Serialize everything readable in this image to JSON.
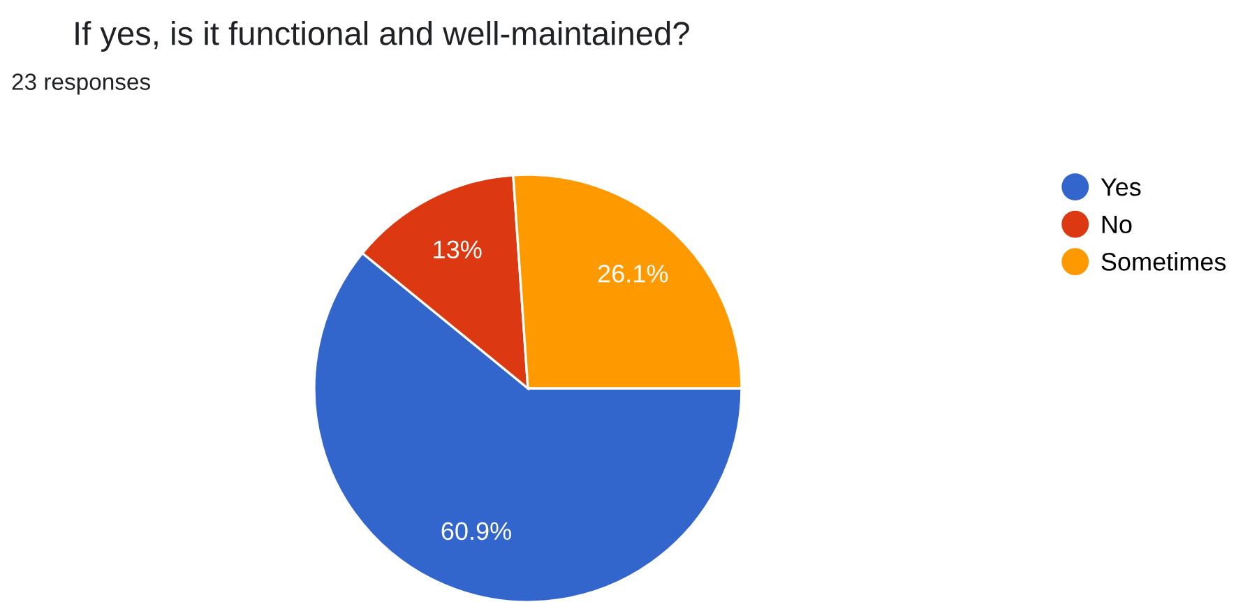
{
  "chart_data": {
    "type": "pie",
    "title": "If yes, is it functional and well-maintained?",
    "subtitle": "23 responses",
    "categories": [
      "Yes",
      "No",
      "Sometimes"
    ],
    "values": [
      60.9,
      13,
      26.1
    ],
    "colors": [
      "#3366cc",
      "#dc3912",
      "#ff9900"
    ],
    "value_labels": [
      "60.9%",
      "13%",
      "26.1%"
    ],
    "legend": "right"
  }
}
